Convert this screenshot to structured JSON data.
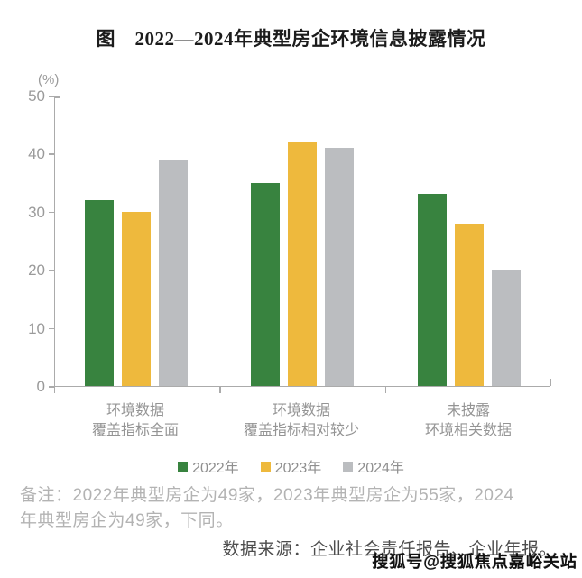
{
  "title": "图　2022—2024年典型房企环境信息披露情况",
  "chart_data": {
    "type": "bar",
    "unit_label": "(%)",
    "categories": [
      [
        "环境数据",
        "覆盖指标全面"
      ],
      [
        "环境数据",
        "覆盖指标相对较少"
      ],
      [
        "未披露",
        "环境相关数据"
      ]
    ],
    "series": [
      {
        "name": "2022年",
        "color": "#38833F",
        "values": [
          32,
          35,
          33
        ]
      },
      {
        "name": "2023年",
        "color": "#EEB93D",
        "values": [
          30,
          42,
          28
        ]
      },
      {
        "name": "2024年",
        "color": "#BBBDC0",
        "values": [
          39,
          41,
          20
        ]
      }
    ],
    "ylim": [
      0,
      50
    ],
    "yticks": [
      0,
      10,
      20,
      30,
      40,
      50
    ],
    "grid": false,
    "legend_position": "bottom"
  },
  "note": {
    "line1": "备注：2022年典型房企为49家，2023年典型房企为55家，2024",
    "line2": "年典型房企为49家，下同。"
  },
  "source": "数据来源：企业社会责任报告、企业年报。",
  "watermark": "搜狐号@搜狐焦点嘉峪关站",
  "colors": {
    "axis": "#ABABAB",
    "axis_text": "#9A9A9A",
    "title_text": "#1C1C1C",
    "note_text": "#B3B3B3",
    "source_text": "#4D4D4D"
  }
}
